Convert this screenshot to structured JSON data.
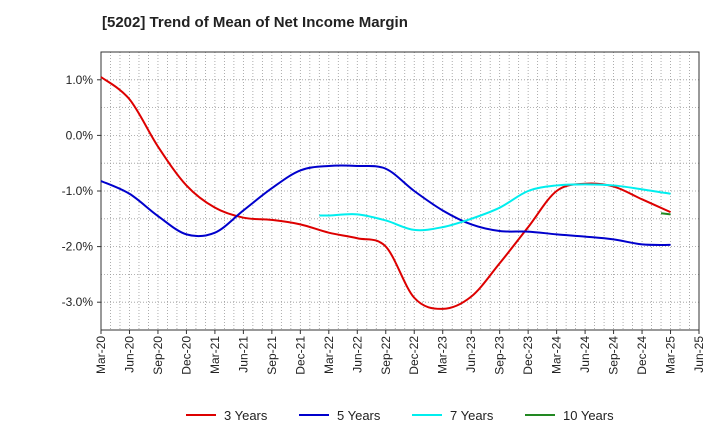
{
  "chart_data": {
    "type": "line",
    "title": "[5202]  Trend of Mean of Net Income Margin",
    "xlabel": "",
    "ylabel": "",
    "x_ticks": [
      "Mar-20",
      "Jun-20",
      "Sep-20",
      "Dec-20",
      "Mar-21",
      "Jun-21",
      "Sep-21",
      "Dec-21",
      "Mar-22",
      "Jun-22",
      "Sep-22",
      "Dec-22",
      "Mar-23",
      "Jun-23",
      "Sep-23",
      "Dec-23",
      "Mar-24",
      "Jun-24",
      "Sep-24",
      "Dec-24",
      "Mar-25",
      "Jun-25"
    ],
    "y_ticks": [
      {
        "value": 1.0,
        "label": "1.0%"
      },
      {
        "value": 0.0,
        "label": "0.0%"
      },
      {
        "value": -1.0,
        "label": "-1.0%"
      },
      {
        "value": -2.0,
        "label": "-2.0%"
      },
      {
        "value": -3.0,
        "label": "-3.0%"
      }
    ],
    "ylim": [
      -3.5,
      1.5
    ],
    "grid": true,
    "legend_position": "bottom",
    "series": [
      {
        "name": "3 Years",
        "color": "#dd0000",
        "points": [
          [
            "Mar-20",
            1.05
          ],
          [
            "Jun-20",
            0.65
          ],
          [
            "Sep-20",
            -0.2
          ],
          [
            "Dec-20",
            -0.9
          ],
          [
            "Mar-21",
            -1.3
          ],
          [
            "Jun-21",
            -1.48
          ],
          [
            "Sep-21",
            -1.52
          ],
          [
            "Dec-21",
            -1.6
          ],
          [
            "Mar-22",
            -1.75
          ],
          [
            "Jun-22",
            -1.85
          ],
          [
            "Sep-22",
            -2.0
          ],
          [
            "Dec-22",
            -2.92
          ],
          [
            "Mar-23",
            -3.12
          ],
          [
            "Jun-23",
            -2.9
          ],
          [
            "Sep-23",
            -2.3
          ],
          [
            "Dec-23",
            -1.65
          ],
          [
            "Mar-24",
            -1.0
          ],
          [
            "Jun-24",
            -0.87
          ],
          [
            "Sep-24",
            -0.92
          ],
          [
            "Dec-24",
            -1.15
          ],
          [
            "Mar-25",
            -1.38
          ]
        ]
      },
      {
        "name": "5 Years",
        "color": "#0000cc",
        "points": [
          [
            "Mar-20",
            -0.82
          ],
          [
            "Jun-20",
            -1.05
          ],
          [
            "Sep-20",
            -1.45
          ],
          [
            "Dec-20",
            -1.78
          ],
          [
            "Mar-21",
            -1.75
          ],
          [
            "Jun-21",
            -1.35
          ],
          [
            "Sep-21",
            -0.95
          ],
          [
            "Dec-21",
            -0.63
          ],
          [
            "Mar-22",
            -0.55
          ],
          [
            "Jun-22",
            -0.55
          ],
          [
            "Sep-22",
            -0.6
          ],
          [
            "Dec-22",
            -1.0
          ],
          [
            "Mar-23",
            -1.35
          ],
          [
            "Jun-23",
            -1.6
          ],
          [
            "Sep-23",
            -1.72
          ],
          [
            "Dec-23",
            -1.73
          ],
          [
            "Mar-24",
            -1.78
          ],
          [
            "Jun-24",
            -1.82
          ],
          [
            "Sep-24",
            -1.87
          ],
          [
            "Dec-24",
            -1.96
          ],
          [
            "Mar-25",
            -1.97
          ]
        ]
      },
      {
        "name": "7 Years",
        "color": "#00eeee",
        "points": [
          [
            "Feb-22",
            -1.44
          ],
          [
            "Mar-22",
            -1.44
          ],
          [
            "Jun-22",
            -1.42
          ],
          [
            "Sep-22",
            -1.53
          ],
          [
            "Dec-22",
            -1.7
          ],
          [
            "Mar-23",
            -1.65
          ],
          [
            "Jun-23",
            -1.5
          ],
          [
            "Sep-23",
            -1.3
          ],
          [
            "Dec-23",
            -1.0
          ],
          [
            "Mar-24",
            -0.9
          ],
          [
            "Jun-24",
            -0.88
          ],
          [
            "Sep-24",
            -0.9
          ],
          [
            "Dec-24",
            -0.97
          ],
          [
            "Mar-25",
            -1.05
          ]
        ]
      },
      {
        "name": "10 Years",
        "color": "#228822",
        "points": [
          [
            "Feb-25",
            -1.4
          ],
          [
            "Mar-25",
            -1.42
          ]
        ]
      }
    ]
  }
}
